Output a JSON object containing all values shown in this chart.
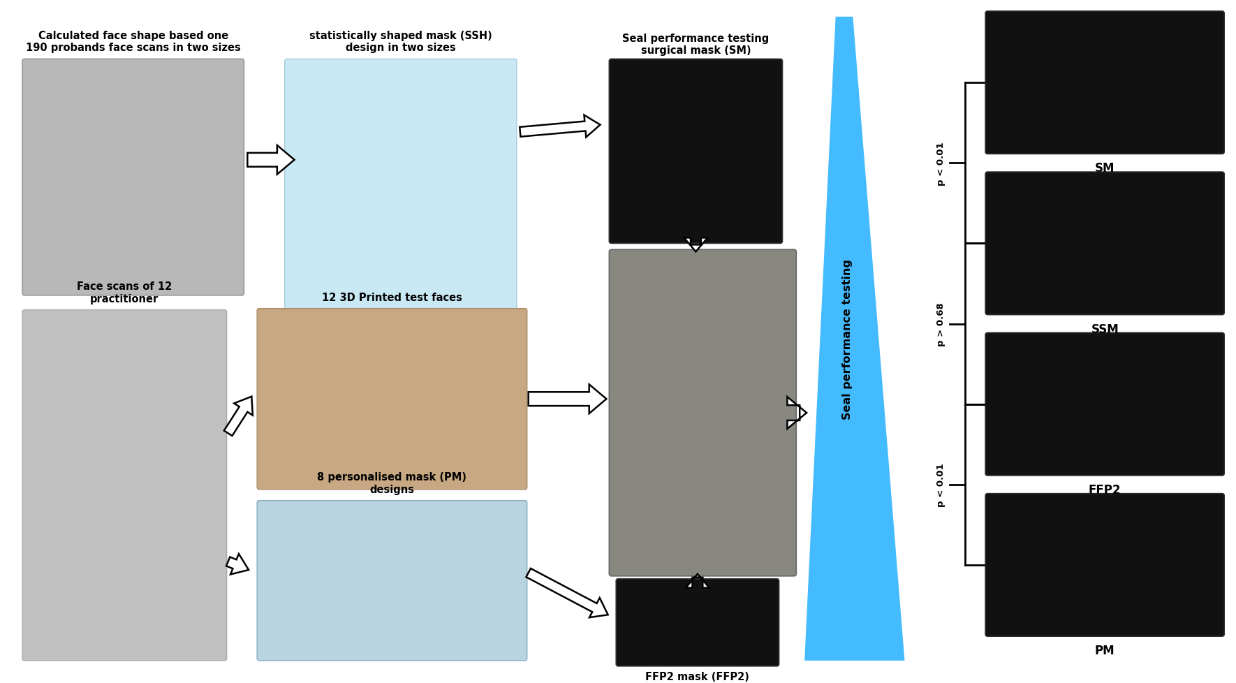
{
  "background_color": "#ffffff",
  "triangle_color": "#44bbff",
  "labels": {
    "top_left_title": "Calculated face shape based one\n190 probands face scans in two sizes",
    "top_mid_title": "statistically shaped mask (SSH)\ndesign in two sizes",
    "top_right_title": "Seal performance testing\nsurgical mask (SM)",
    "mid_left_title": "Face scans of 12\npractitioner",
    "mid_mid_title": "12 3D Printed test faces",
    "bot_mid_title": "8 personalised mask (PM)\ndesigns",
    "bot_right_title": "FFP2 mask (FFP2)",
    "seal_label": "Seal performance testing",
    "mask_labels": [
      "SM",
      "SSM",
      "FFP2",
      "PM"
    ],
    "p_values": [
      "p < 0.01",
      "p > 0.68",
      "p < 0.01"
    ]
  },
  "fig_w": 17.7,
  "fig_h": 9.79,
  "dpi": 100
}
